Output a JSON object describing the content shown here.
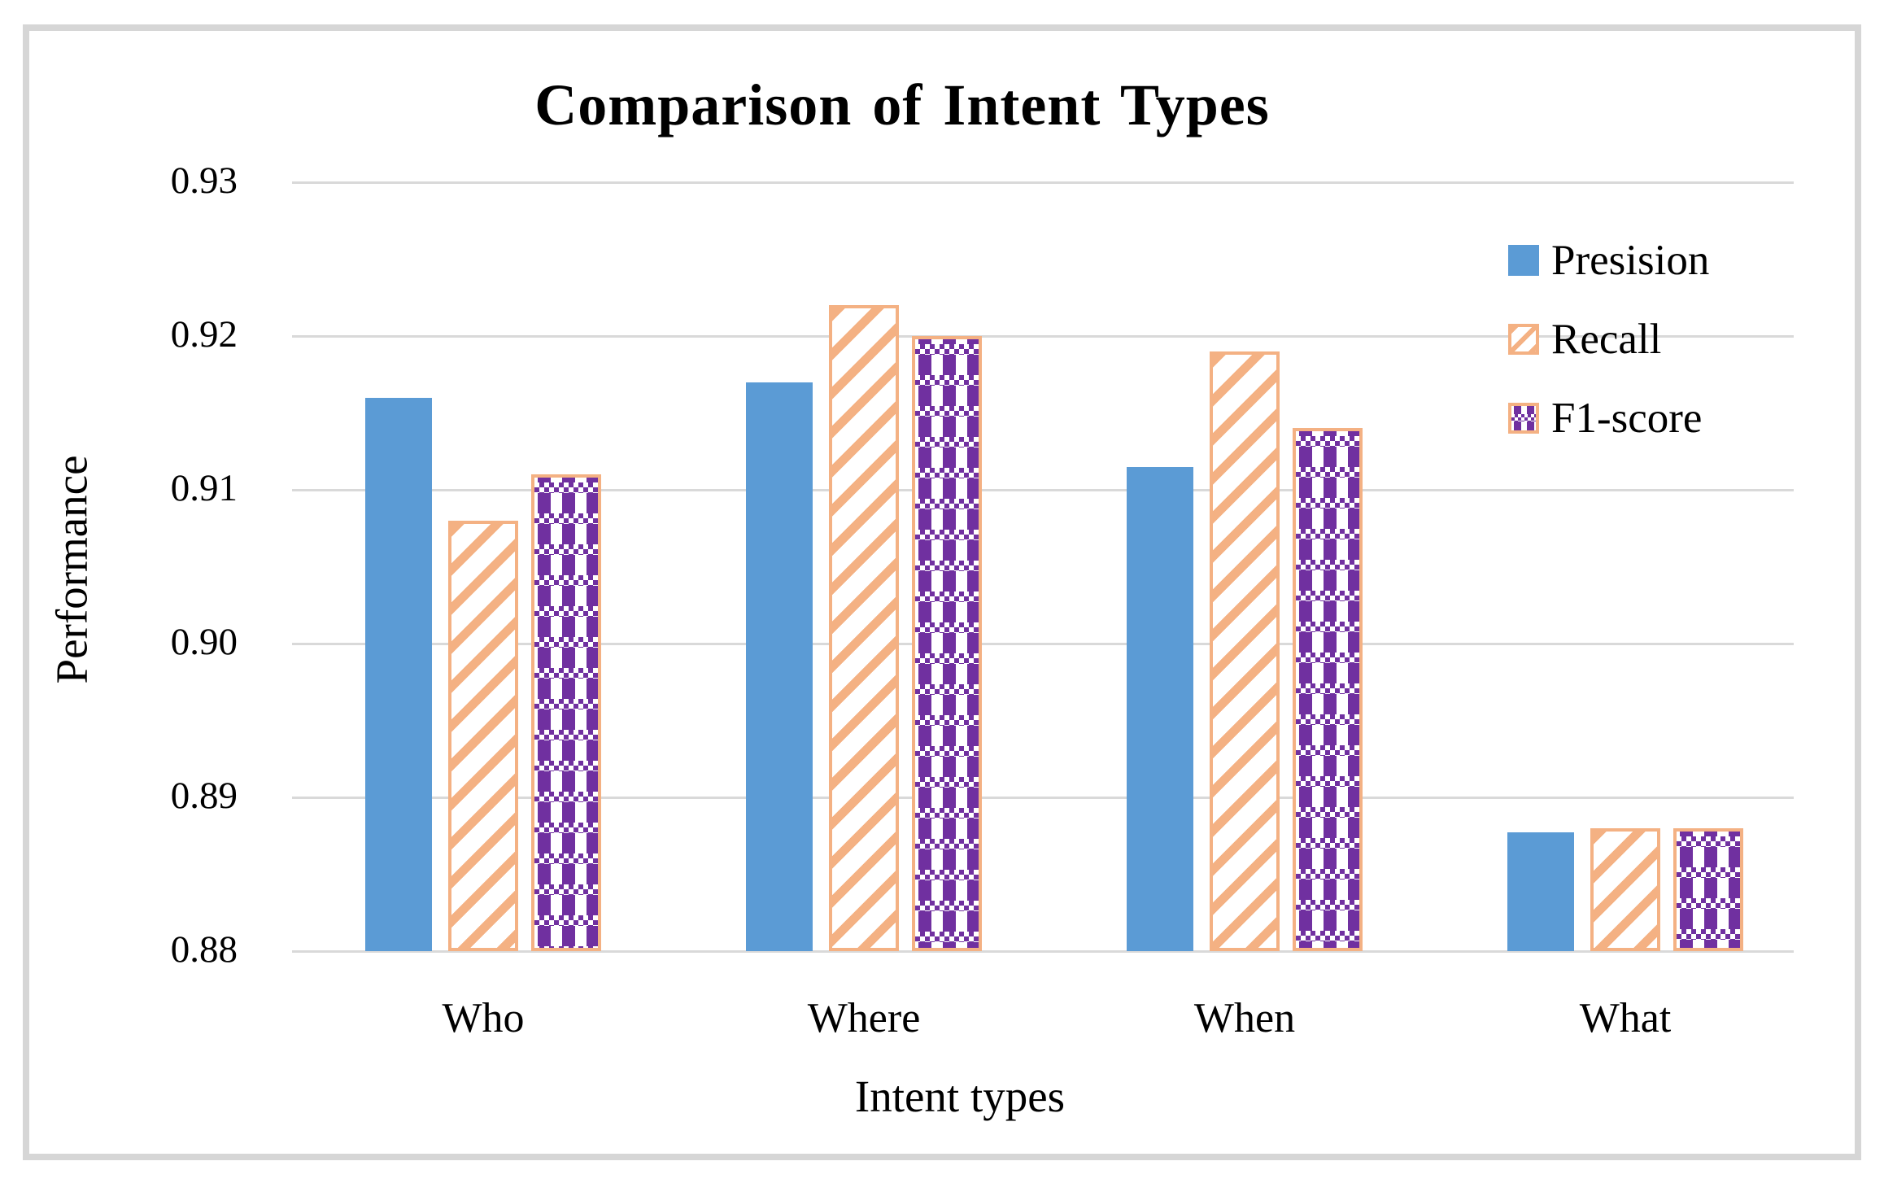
{
  "figure": {
    "title": "Comparison of Intent Types"
  },
  "chart_data": {
    "type": "bar",
    "title": "Comparison of Intent Types",
    "xlabel": "Intent types",
    "ylabel": "Performance",
    "categories": [
      "Who",
      "Where",
      "When",
      "What"
    ],
    "series": [
      {
        "name": "Presision",
        "style": "solid-blue",
        "values": [
          0.916,
          0.917,
          0.9115,
          0.8877
        ]
      },
      {
        "name": "Recall",
        "style": "orange-diagonal-hatch",
        "values": [
          0.908,
          0.922,
          0.919,
          0.888
        ]
      },
      {
        "name": "F1-score",
        "style": "purple-plaid",
        "values": [
          0.911,
          0.92,
          0.914,
          0.888
        ]
      }
    ],
    "ylim": [
      0.88,
      0.93
    ],
    "yticks": [
      0.93,
      0.92,
      0.91,
      0.9,
      0.89,
      0.88
    ],
    "ytick_labels": [
      "0.93",
      "0.92",
      "0.91",
      "0.90",
      "0.89",
      "0.88"
    ],
    "grid": true,
    "legend_position": "upper-right"
  },
  "colors": {
    "precision_blue": "#5B9BD5",
    "pattern_border_orange": "#F4B183",
    "f1_purple": "#7030A0",
    "gridline": "#D9D9D9",
    "frame_border": "#D6D6D6",
    "text": "#000000"
  }
}
